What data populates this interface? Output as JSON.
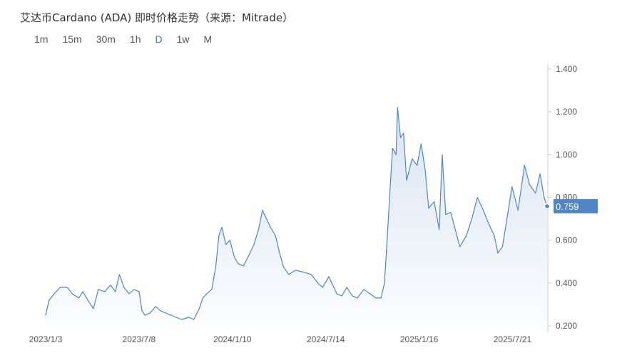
{
  "title": "艾达币Cardano (ADA) 即时价格走势（来源：Mitrade）",
  "tabs": [
    {
      "label": "1m",
      "active": false
    },
    {
      "label": "15m",
      "active": false
    },
    {
      "label": "30m",
      "active": false
    },
    {
      "label": "1h",
      "active": false
    },
    {
      "label": "D",
      "active": true
    },
    {
      "label": "1w",
      "active": false
    },
    {
      "label": "M",
      "active": false
    }
  ],
  "colors": {
    "line": "#4e86c6",
    "accent": "#3d7abf",
    "axis": "#cccccc",
    "text": "#555555"
  },
  "chart_data": {
    "type": "area",
    "title": "",
    "xlabel": "",
    "ylabel": "",
    "ylim": [
      0.2,
      1.4
    ],
    "yticks": [
      1.4,
      1.2,
      1.0,
      0.8,
      0.6,
      0.4,
      0.2
    ],
    "ytick_labels": [
      "1.400",
      "1.200",
      "1.000",
      "0.800",
      "0.600",
      "0.400",
      "0.200"
    ],
    "xticks": [
      "2023/1/3",
      "2023/7/8",
      "2024/1/10",
      "2024/7/14",
      "2025/1/16",
      "2025/7/21"
    ],
    "grid": false,
    "current_value": "0.759",
    "series": [
      {
        "values": [
          [
            "2023-01-03",
            0.25
          ],
          [
            "2023-01-10",
            0.32
          ],
          [
            "2023-01-20",
            0.35
          ],
          [
            "2023-02-01",
            0.38
          ],
          [
            "2023-02-15",
            0.38
          ],
          [
            "2023-02-25",
            0.35
          ],
          [
            "2023-03-10",
            0.33
          ],
          [
            "2023-03-18",
            0.36
          ],
          [
            "2023-03-28",
            0.32
          ],
          [
            "2023-04-08",
            0.28
          ],
          [
            "2023-04-18",
            0.37
          ],
          [
            "2023-05-01",
            0.36
          ],
          [
            "2023-05-12",
            0.39
          ],
          [
            "2023-05-22",
            0.36
          ],
          [
            "2023-05-30",
            0.44
          ],
          [
            "2023-06-08",
            0.38
          ],
          [
            "2023-06-18",
            0.35
          ],
          [
            "2023-06-28",
            0.37
          ],
          [
            "2023-07-08",
            0.36
          ],
          [
            "2023-07-14",
            0.27
          ],
          [
            "2023-07-20",
            0.25
          ],
          [
            "2023-07-30",
            0.26
          ],
          [
            "2023-08-10",
            0.29
          ],
          [
            "2023-08-20",
            0.27
          ],
          [
            "2023-08-30",
            0.26
          ],
          [
            "2023-09-10",
            0.25
          ],
          [
            "2023-09-20",
            0.24
          ],
          [
            "2023-10-01",
            0.23
          ],
          [
            "2023-10-15",
            0.24
          ],
          [
            "2023-10-25",
            0.23
          ],
          [
            "2023-11-05",
            0.28
          ],
          [
            "2023-11-12",
            0.33
          ],
          [
            "2023-11-20",
            0.35
          ],
          [
            "2023-11-30",
            0.37
          ],
          [
            "2023-12-08",
            0.48
          ],
          [
            "2023-12-14",
            0.62
          ],
          [
            "2023-12-20",
            0.66
          ],
          [
            "2023-12-28",
            0.58
          ],
          [
            "2024-01-05",
            0.6
          ],
          [
            "2024-01-14",
            0.52
          ],
          [
            "2024-01-22",
            0.49
          ],
          [
            "2024-02-01",
            0.48
          ],
          [
            "2024-02-12",
            0.53
          ],
          [
            "2024-02-22",
            0.58
          ],
          [
            "2024-03-02",
            0.65
          ],
          [
            "2024-03-10",
            0.74
          ],
          [
            "2024-03-18",
            0.7
          ],
          [
            "2024-03-26",
            0.66
          ],
          [
            "2024-04-05",
            0.62
          ],
          [
            "2024-04-12",
            0.55
          ],
          [
            "2024-04-20",
            0.48
          ],
          [
            "2024-05-01",
            0.44
          ],
          [
            "2024-05-15",
            0.46
          ],
          [
            "2024-06-01",
            0.45
          ],
          [
            "2024-06-15",
            0.44
          ],
          [
            "2024-06-28",
            0.4
          ],
          [
            "2024-07-08",
            0.38
          ],
          [
            "2024-07-20",
            0.43
          ],
          [
            "2024-08-05",
            0.35
          ],
          [
            "2024-08-15",
            0.34
          ],
          [
            "2024-08-25",
            0.38
          ],
          [
            "2024-09-05",
            0.34
          ],
          [
            "2024-09-15",
            0.33
          ],
          [
            "2024-09-28",
            0.37
          ],
          [
            "2024-10-10",
            0.35
          ],
          [
            "2024-10-22",
            0.33
          ],
          [
            "2024-11-01",
            0.33
          ],
          [
            "2024-11-08",
            0.4
          ],
          [
            "2024-11-12",
            0.55
          ],
          [
            "2024-11-18",
            0.79
          ],
          [
            "2024-11-24",
            1.03
          ],
          [
            "2024-12-01",
            1.0
          ],
          [
            "2024-12-04",
            1.22
          ],
          [
            "2024-12-10",
            1.08
          ],
          [
            "2024-12-16",
            1.1
          ],
          [
            "2024-12-22",
            0.88
          ],
          [
            "2025-01-02",
            0.98
          ],
          [
            "2025-01-12",
            0.95
          ],
          [
            "2025-01-20",
            1.05
          ],
          [
            "2025-01-28",
            0.93
          ],
          [
            "2025-02-04",
            0.75
          ],
          [
            "2025-02-15",
            0.78
          ],
          [
            "2025-02-25",
            0.65
          ],
          [
            "2025-03-03",
            1.0
          ],
          [
            "2025-03-10",
            0.72
          ],
          [
            "2025-03-20",
            0.73
          ],
          [
            "2025-04-07",
            0.57
          ],
          [
            "2025-04-20",
            0.62
          ],
          [
            "2025-05-01",
            0.7
          ],
          [
            "2025-05-12",
            0.8
          ],
          [
            "2025-05-22",
            0.75
          ],
          [
            "2025-06-05",
            0.67
          ],
          [
            "2025-06-15",
            0.62
          ],
          [
            "2025-06-22",
            0.54
          ],
          [
            "2025-07-01",
            0.57
          ],
          [
            "2025-07-12",
            0.73
          ],
          [
            "2025-07-20",
            0.85
          ],
          [
            "2025-08-01",
            0.74
          ],
          [
            "2025-08-14",
            0.95
          ],
          [
            "2025-08-24",
            0.86
          ],
          [
            "2025-09-05",
            0.82
          ],
          [
            "2025-09-14",
            0.91
          ],
          [
            "2025-09-22",
            0.8
          ],
          [
            "2025-09-28",
            0.759
          ]
        ]
      }
    ]
  }
}
